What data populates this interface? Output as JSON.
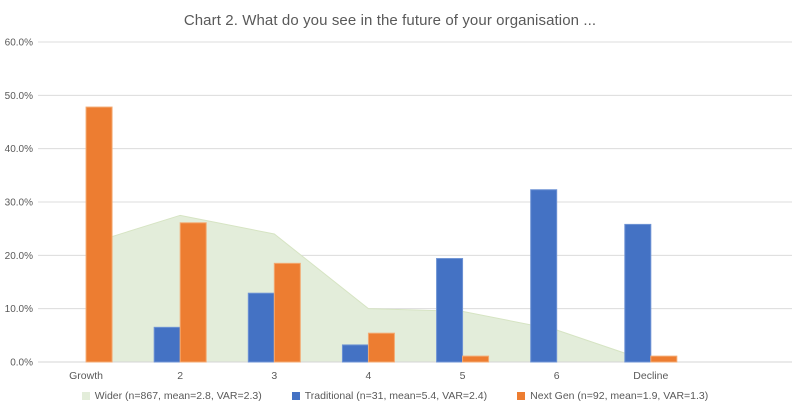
{
  "chart": {
    "title": "Chart 2. What do you see in the future of your organisation ..."
  },
  "chart_data": {
    "type": "combo-area-bar",
    "title": "Chart 2. What do you see in the future of your organisation ...",
    "categories": [
      "Growth",
      "2",
      "3",
      "4",
      "5",
      "6",
      "Decline"
    ],
    "xlabel": "",
    "ylabel": "",
    "y_ticks": [
      "0.0%",
      "10.0%",
      "20.0%",
      "30.0%",
      "40.0%",
      "50.0%",
      "60.0%"
    ],
    "ylim": [
      0,
      60
    ],
    "grid": true,
    "legend_position": "bottom",
    "series": [
      {
        "name": "Wider (n=867, mean=2.8, VAR=2.3)",
        "type": "area",
        "color": "#E3EDDA",
        "edge_color": "#D6E4C3",
        "values": [
          22,
          27.5,
          24,
          10,
          9.5,
          6,
          0
        ]
      },
      {
        "name": "Traditional (n=31, mean=5.4, VAR=2.4)",
        "type": "bar",
        "color": "#4472C4",
        "edge_color": "#6E93D4",
        "values": [
          0,
          6.5,
          12.9,
          3.2,
          19.4,
          32.3,
          25.8
        ]
      },
      {
        "name": "Next Gen (n=92, mean=1.9, VAR=1.3)",
        "type": "bar",
        "color": "#ED7D31",
        "edge_color": "#F3AA72",
        "values": [
          47.8,
          26.1,
          18.5,
          5.4,
          1.1,
          0,
          1.1
        ]
      }
    ],
    "colors": {
      "gridline": "#DCDCDC",
      "axis_line": "#D5D5D5",
      "text": "#595959"
    }
  }
}
